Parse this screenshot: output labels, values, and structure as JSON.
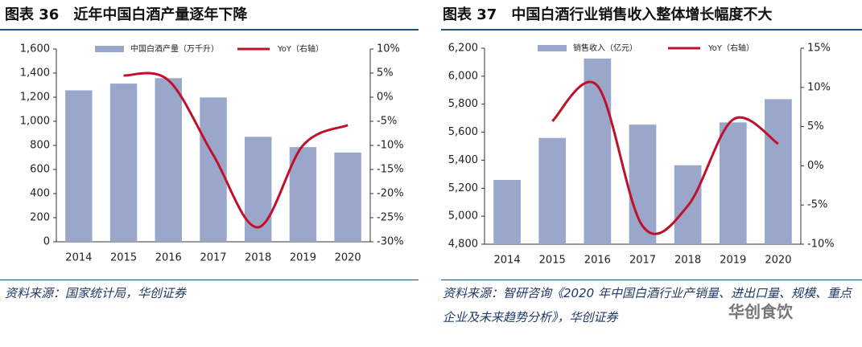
{
  "chart_data": [
    {
      "type": "bar_line",
      "title": "图表 36　近年中国白酒产量逐年下降",
      "categories": [
        "2014",
        "2015",
        "2016",
        "2017",
        "2018",
        "2019",
        "2020"
      ],
      "series": [
        {
          "name": "中国白酒产量（万千升）",
          "type": "bar",
          "color": "#9aa7cb",
          "values": [
            1257,
            1313,
            1358,
            1198,
            871,
            786,
            741
          ]
        },
        {
          "name": "YoY（右轴）",
          "type": "line",
          "axis": "y2",
          "color": "#c0102a",
          "values": [
            null,
            4.5,
            3.5,
            -12,
            -27,
            -10,
            -5.8
          ]
        }
      ],
      "ylim": [
        0,
        1600
      ],
      "yticks": [
        0,
        200,
        400,
        600,
        800,
        {
          "value": 1000,
          "label": "1,000"
        },
        {
          "value": 1200,
          "label": "1,200"
        },
        {
          "value": 1400,
          "label": "1,400"
        },
        {
          "value": 1600,
          "label": "1,600"
        }
      ],
      "y2lim": [
        -30,
        10
      ],
      "y2ticks": [
        {
          "value": -30,
          "label": "-30%"
        },
        {
          "value": -25,
          "label": "-25%"
        },
        {
          "value": -20,
          "label": "-20%"
        },
        {
          "value": -15,
          "label": "-15%"
        },
        {
          "value": -10,
          "label": "-10%"
        },
        {
          "value": -5,
          "label": "-5%"
        },
        {
          "value": 0,
          "label": "0%"
        },
        {
          "value": 5,
          "label": "5%"
        },
        {
          "value": 10,
          "label": "10%"
        }
      ],
      "source": "资料来源：国家统计局，华创证券"
    },
    {
      "type": "bar_line",
      "title": "图表 37　中国白酒行业销售收入整体增长幅度不大",
      "categories": [
        "2014",
        "2015",
        "2016",
        "2017",
        "2018",
        "2019",
        "2020"
      ],
      "series": [
        {
          "name": "销售收入（亿元）",
          "type": "bar",
          "color": "#9aa7cb",
          "values": [
            5259,
            5559,
            6126,
            5654,
            5364,
            5670,
            5836
          ]
        },
        {
          "name": "YoY（右轴）",
          "type": "line",
          "axis": "y2",
          "color": "#c0102a",
          "values": [
            null,
            5.7,
            10.2,
            -7.7,
            -5.1,
            5.9,
            2.8
          ]
        }
      ],
      "ylim": [
        4800,
        6200
      ],
      "yticks": [
        {
          "value": 4800,
          "label": "4,800"
        },
        {
          "value": 5000,
          "label": "5,000"
        },
        {
          "value": 5200,
          "label": "5,200"
        },
        {
          "value": 5400,
          "label": "5,400"
        },
        {
          "value": 5600,
          "label": "5,600"
        },
        {
          "value": 5800,
          "label": "5,800"
        },
        {
          "value": 6000,
          "label": "6,000"
        },
        {
          "value": 6200,
          "label": "6,200"
        }
      ],
      "y2lim": [
        -10,
        15
      ],
      "y2ticks": [
        {
          "value": -10,
          "label": "-10%"
        },
        {
          "value": -5,
          "label": "-5%"
        },
        {
          "value": 0,
          "label": "0%"
        },
        {
          "value": 5,
          "label": "5%"
        },
        {
          "value": 10,
          "label": "10%"
        },
        {
          "value": 15,
          "label": "15%"
        }
      ],
      "source": "资料来源：智研咨询《2020 年中国白酒行业产销量、进出口量、规模、重点企业及未来趋势分析》，华创证券"
    }
  ],
  "watermark": "华创食饮"
}
